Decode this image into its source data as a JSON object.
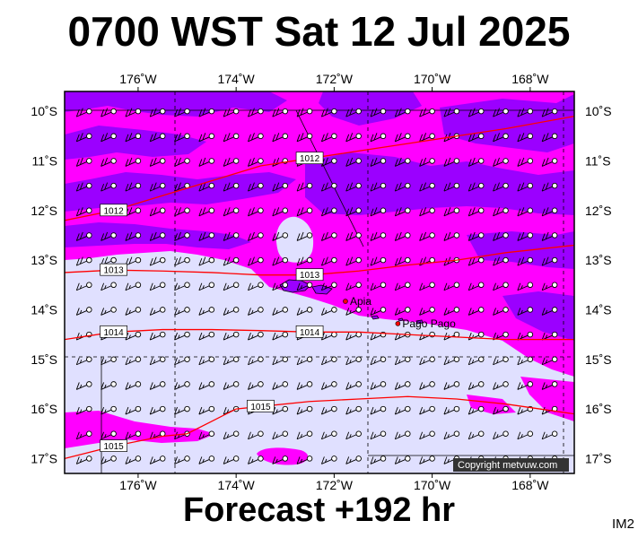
{
  "title": "0700 WST Sat 12 Jul 2025",
  "subtitle": "Forecast +192 hr",
  "image_code": "IM2",
  "copyright": "Copyright metvuw.com",
  "map": {
    "lon_range": [
      -177.5,
      -167.1
    ],
    "lat_range": [
      -17.3,
      -9.6
    ],
    "lon_ticks": [
      "176˚W",
      "174˚W",
      "172˚W",
      "170˚W",
      "168˚W"
    ],
    "lat_ticks": [
      "10˚S",
      "11˚S",
      "12˚S",
      "13˚S",
      "14˚S",
      "15˚S",
      "16˚S",
      "17˚S"
    ],
    "colors": {
      "magenta": "#ff00ff",
      "purple": "#9b00ff",
      "lavender": "#e0e0ff",
      "isobar": "#ff0000",
      "grid_dash": "#000000"
    },
    "isobars": [
      {
        "label": "1012",
        "points": [
          [
            -177.5,
            -12.2
          ],
          [
            -176.5,
            -12.0
          ],
          [
            -175.5,
            -11.7
          ],
          [
            -174.5,
            -11.4
          ],
          [
            -173.5,
            -11.1
          ],
          [
            -172.5,
            -10.95
          ],
          [
            -171.5,
            -10.8
          ],
          [
            -170.5,
            -10.65
          ],
          [
            -169.5,
            -10.5
          ],
          [
            -168.5,
            -10.35
          ],
          [
            -167.1,
            -10.1
          ]
        ]
      },
      {
        "label": "1013",
        "points": [
          [
            -177.5,
            -13.25
          ],
          [
            -176.5,
            -13.2
          ],
          [
            -175.5,
            -13.22
          ],
          [
            -174.5,
            -13.25
          ],
          [
            -173.5,
            -13.3
          ],
          [
            -172.5,
            -13.3
          ],
          [
            -171.5,
            -13.22
          ],
          [
            -170.5,
            -13.1
          ],
          [
            -169.5,
            -13.0
          ],
          [
            -168.5,
            -12.85
          ],
          [
            -167.1,
            -12.7
          ]
        ]
      },
      {
        "label": "1014",
        "points": [
          [
            -177.5,
            -14.6
          ],
          [
            -176.5,
            -14.45
          ],
          [
            -175.5,
            -14.4
          ],
          [
            -174.5,
            -14.4
          ],
          [
            -173.5,
            -14.42
          ],
          [
            -172.5,
            -14.45
          ],
          [
            -171.5,
            -14.45
          ],
          [
            -170.5,
            -14.5
          ],
          [
            -169.5,
            -14.55
          ],
          [
            -168.5,
            -14.6
          ],
          [
            -167.1,
            -14.6
          ]
        ]
      },
      {
        "label": "1015",
        "points": [
          [
            -177.5,
            -17.0
          ],
          [
            -176.5,
            -16.75
          ],
          [
            -175.5,
            -16.55
          ],
          [
            -175.0,
            -16.5
          ],
          [
            -174.5,
            -16.25
          ],
          [
            -174.0,
            -16.0
          ],
          [
            -173.5,
            -15.95
          ],
          [
            -172.5,
            -15.85
          ],
          [
            -171.5,
            -15.8
          ],
          [
            -170.5,
            -15.75
          ],
          [
            -169.5,
            -15.8
          ],
          [
            -168.5,
            -15.9
          ],
          [
            -167.1,
            -16.1
          ]
        ]
      }
    ],
    "places": [
      {
        "name": "Apia",
        "lon": -171.77,
        "lat": -13.83
      },
      {
        "name": "Pago Pago",
        "lon": -170.7,
        "lat": -14.28
      }
    ]
  }
}
